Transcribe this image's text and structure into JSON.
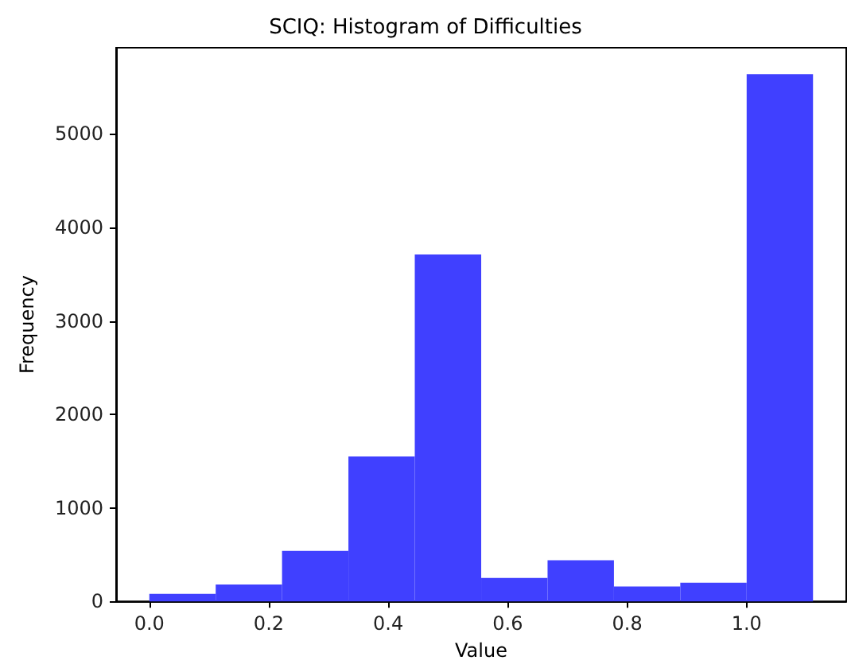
{
  "chart_data": {
    "type": "histogram",
    "title": "SCIQ: Histogram of Difficulties",
    "xlabel": "Value",
    "ylabel": "Frequency",
    "bins": [
      0,
      0.1111,
      0.2222,
      0.3333,
      0.4444,
      0.5556,
      0.6667,
      0.7778,
      0.8889,
      1.0,
      1.1111
    ],
    "values": [
      80,
      180,
      540,
      1550,
      3710,
      250,
      440,
      160,
      200,
      5640
    ],
    "color": "#4040ff",
    "xlim": [
      -0.0556,
      1.1667
    ],
    "xticks": [
      {
        "value": 0,
        "label": "0.0"
      },
      {
        "value": 0.2,
        "label": "0.2"
      },
      {
        "value": 0.4,
        "label": "0.4"
      },
      {
        "value": 0.6,
        "label": "0.6"
      },
      {
        "value": 0.8,
        "label": "0.8"
      },
      {
        "value": 1.0,
        "label": "1.0"
      }
    ],
    "ylim": [
      0,
      5923
    ],
    "yticks": [
      0,
      1000,
      2000,
      3000,
      4000,
      5000
    ],
    "grid": false
  }
}
